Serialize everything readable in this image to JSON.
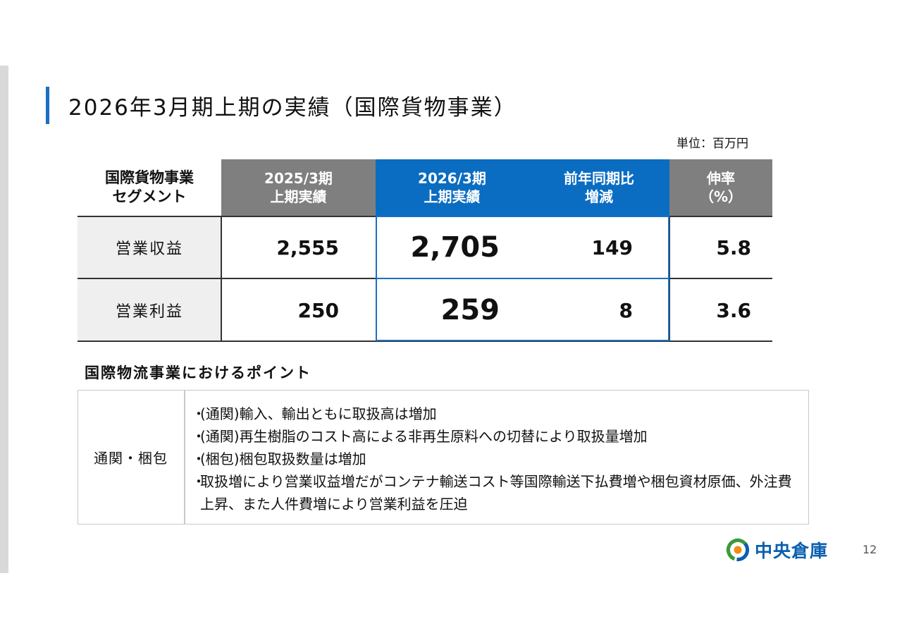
{
  "title": "2026年3月期上期の実績（国際貨物事業）",
  "unit": "単位：百万円",
  "table": {
    "headers": {
      "segment": [
        "国際貨物事業",
        "セグメント"
      ],
      "prev": [
        "2025/3期",
        "上期実績"
      ],
      "curr": [
        "2026/3期",
        "上期実績"
      ],
      "diff": [
        "前年同期比",
        "増減"
      ],
      "rate": [
        "伸率",
        "（%）"
      ]
    },
    "rows": [
      {
        "label": "営業収益",
        "prev": "2,555",
        "curr": "2,705",
        "diff": "149",
        "rate": "5.8"
      },
      {
        "label": "営業利益",
        "prev": "250",
        "curr": "259",
        "diff": "8",
        "rate": "3.6"
      }
    ]
  },
  "points": {
    "title": "国際物流事業におけるポイント",
    "label": "通関・梱包",
    "bullet_mark": "・",
    "items": [
      "(通関)輸入、輸出ともに取扱高は増加",
      "(通関)再生樹脂のコスト高による非再生原料への切替により取扱量増加",
      "(梱包)梱包取扱数量は増加",
      "取扱増により営業収益増だがコンテナ輸送コスト等国際輸送下払費増や梱包資材原価、外注費上昇、また人件費増により営業利益を圧迫"
    ]
  },
  "logo": {
    "text": "中央倉庫",
    "icon": "chuo-soko-logo-icon",
    "colors": {
      "blue": "#0a5fb0",
      "green": "#3a9a3a",
      "orange": "#f08c1a"
    }
  },
  "page_number": "12",
  "colors": {
    "accent_blue": "#1a6fc4",
    "header_gray": "#7f7f7f",
    "header_blue": "#0a6dc2",
    "row_label_bg": "#efefef"
  }
}
